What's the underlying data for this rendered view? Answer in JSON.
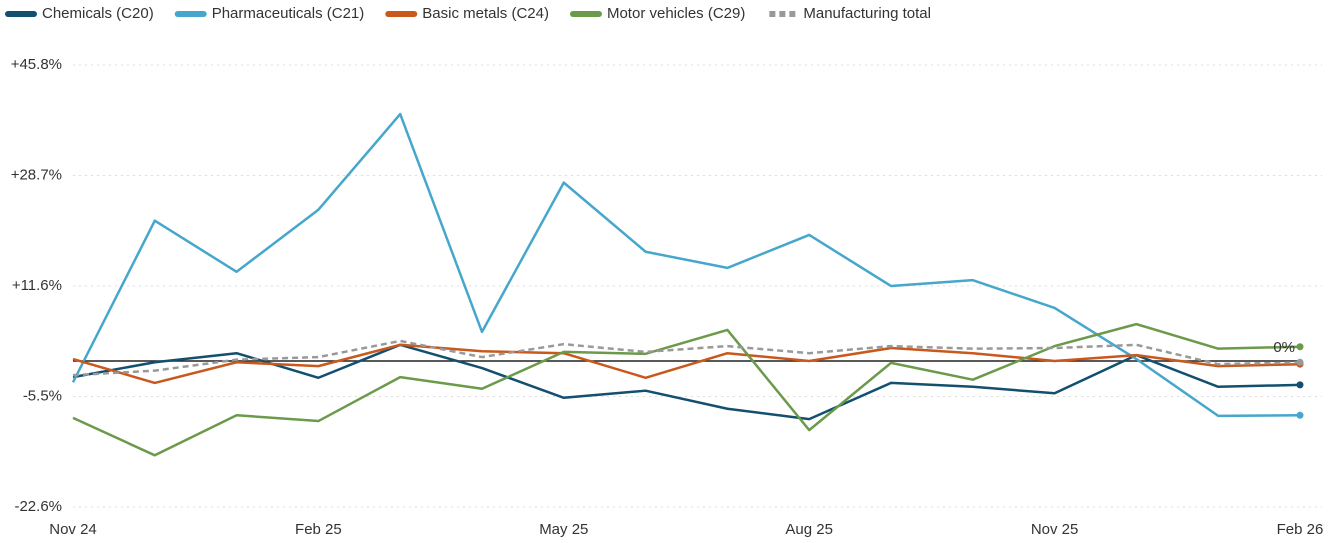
{
  "chart_data": {
    "type": "line",
    "categories": [
      "Nov 24",
      null,
      null,
      "Feb 25",
      null,
      null,
      "May 25",
      null,
      null,
      "Aug 25",
      null,
      null,
      "Nov 25",
      null,
      null,
      "Feb 26"
    ],
    "series": [
      {
        "name": "Chemicals (C20)",
        "color": "#134f6e",
        "values": [
          -2.5,
          -0.2,
          1.2,
          -2.6,
          2.5,
          -1.1,
          -5.7,
          -4.6,
          -7.4,
          -9.0,
          -3.4,
          -4.0,
          -5.0,
          0.9,
          -4.0,
          -3.7
        ]
      },
      {
        "name": "Pharmaceuticals (C21)",
        "color": "#46a6cc",
        "values": [
          -3.3,
          21.7,
          13.8,
          23.4,
          38.2,
          4.5,
          27.6,
          16.9,
          14.4,
          19.5,
          11.6,
          12.5,
          8.2,
          0.3,
          -8.5,
          -8.4
        ]
      },
      {
        "name": "Basic metals (C24)",
        "color": "#c8581c",
        "values": [
          0.3,
          -3.4,
          -0.2,
          -0.8,
          2.5,
          1.5,
          1.2,
          -2.6,
          1.2,
          0,
          2.0,
          1.2,
          0,
          0.9,
          -0.8,
          -0.5
        ]
      },
      {
        "name": "Motor vehicles (C29)",
        "color": "#6a9a4a",
        "values": [
          -8.8,
          -14.6,
          -8.4,
          -9.3,
          -2.5,
          -4.3,
          1.4,
          1.1,
          4.8,
          -10.7,
          -0.3,
          -2.9,
          2.3,
          5.7,
          1.9,
          2.2
        ]
      },
      {
        "name": "Manufacturing total",
        "color": "#999999",
        "dash": true,
        "values": [
          -2.2,
          -1.5,
          0.2,
          0.6,
          3.1,
          0.6,
          2.6,
          1.4,
          2.3,
          1.2,
          2.3,
          1.9,
          2.0,
          2.5,
          -0.5,
          -0.2
        ]
      }
    ],
    "ylim": [
      -22.6,
      45.8
    ],
    "yticks": [
      {
        "value": -22.6,
        "label": "-22.6%"
      },
      {
        "value": -5.5,
        "label": "-5.5%"
      },
      {
        "value": 11.6,
        "label": "+11.6%"
      },
      {
        "value": 28.7,
        "label": "+28.7%"
      },
      {
        "value": 45.8,
        "label": "+45.8%"
      }
    ],
    "grid": true,
    "legend": "top",
    "reference_line": {
      "value": 0,
      "label": "0%"
    }
  }
}
